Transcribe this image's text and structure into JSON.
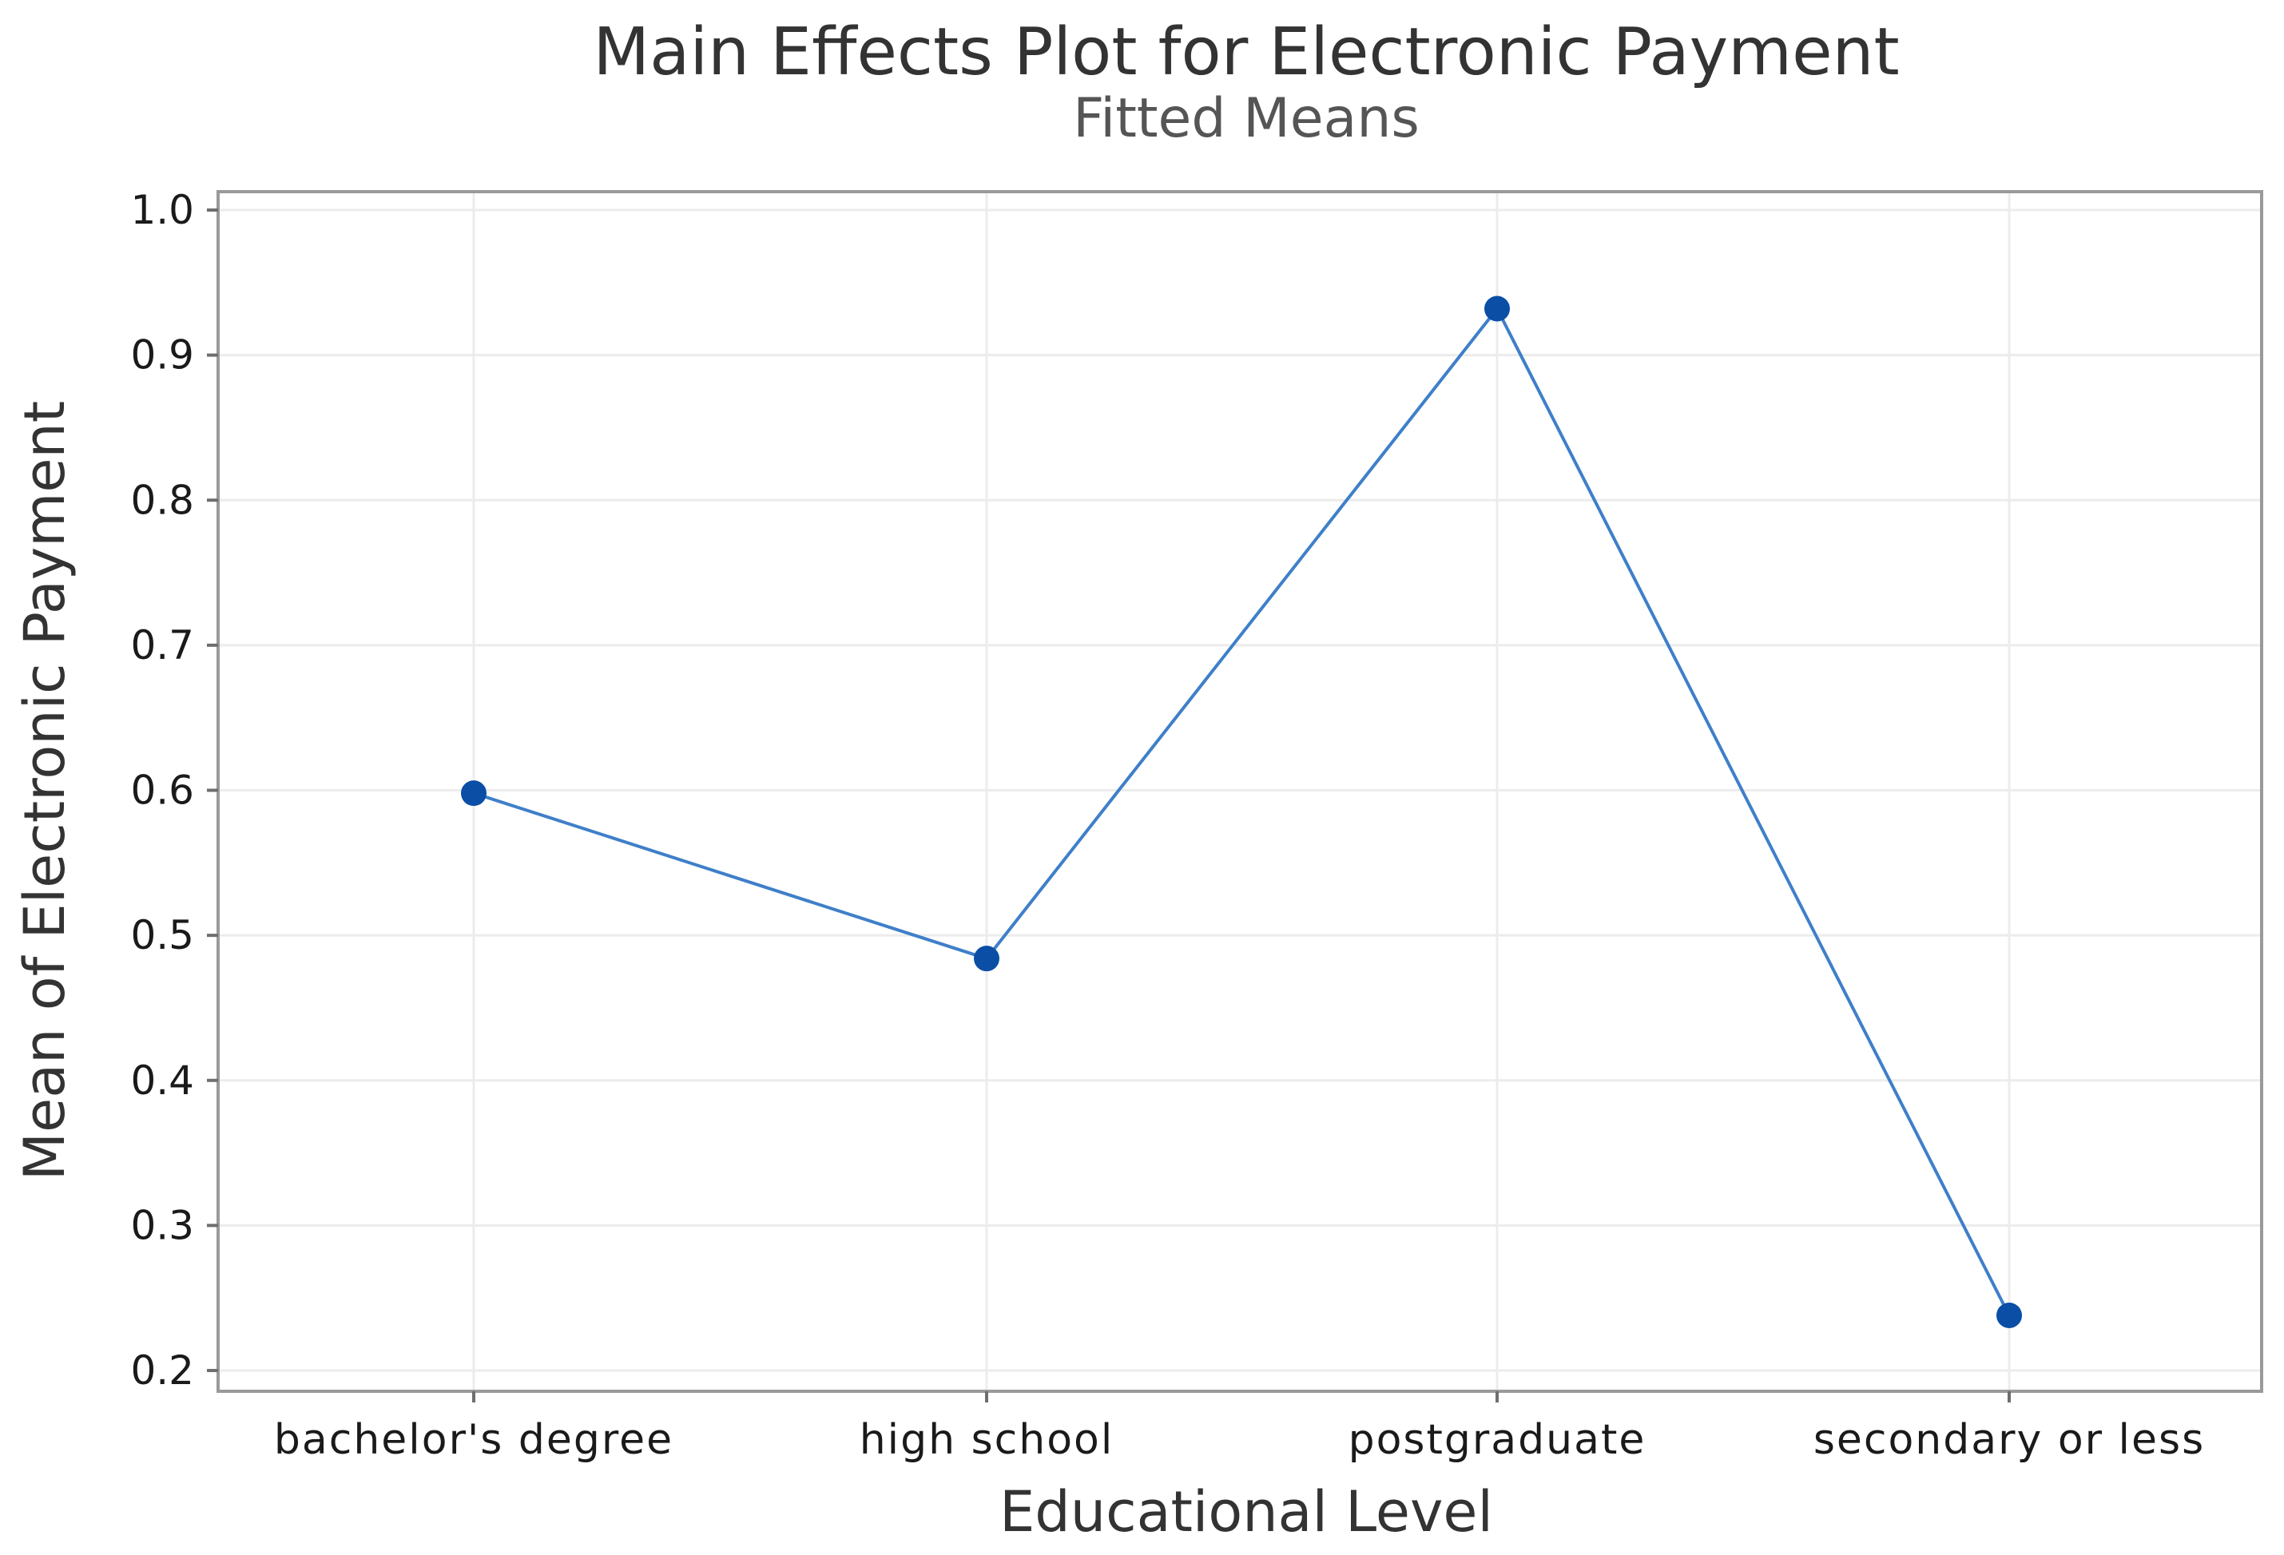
{
  "chart_data": {
    "type": "line",
    "title": "Main Effects Plot for Electronic Payment",
    "subtitle": "Fitted Means",
    "xlabel": "Educational Level",
    "ylabel": "Mean of Electronic Payment",
    "categories": [
      "bachelor's degree",
      "high school",
      "postgraduate",
      "secondary or less"
    ],
    "series": [
      {
        "values": [
          0.598,
          0.484,
          0.932,
          0.238
        ]
      }
    ],
    "ylim": [
      0.2,
      1.0
    ],
    "yticks": [
      "0.2",
      "0.3",
      "0.4",
      "0.5",
      "0.6",
      "0.7",
      "0.8",
      "0.9",
      "1.0"
    ],
    "grid": true,
    "colors": {
      "line": "#3f7fc9",
      "marker": "#0a4ea6",
      "frame": "#9a9a9a",
      "grid": "#ececec"
    }
  }
}
